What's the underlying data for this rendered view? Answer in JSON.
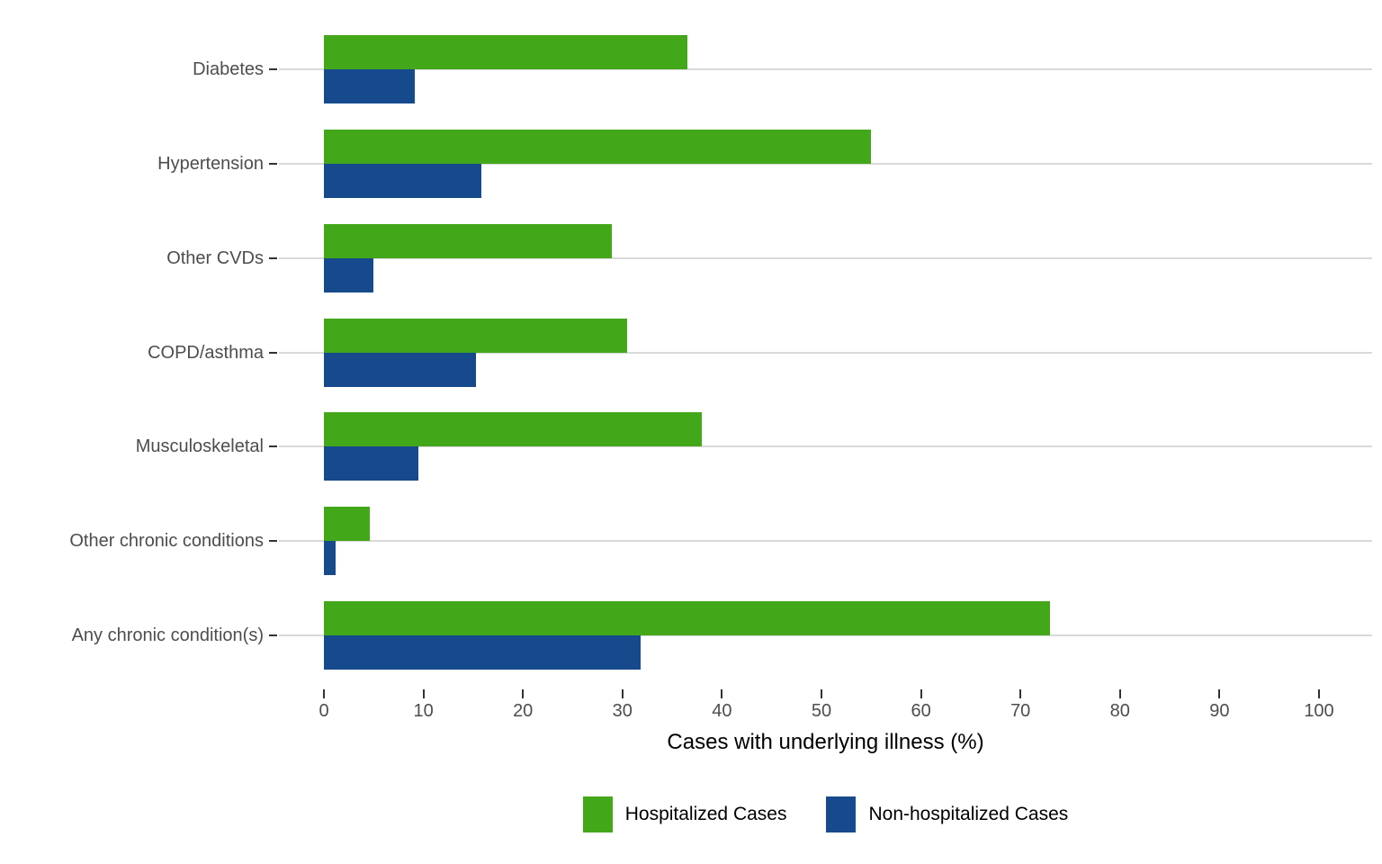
{
  "chart_data": {
    "type": "bar",
    "orientation": "horizontal",
    "title": "",
    "xlabel": "Cases with underlying illness (%)",
    "ylabel": "",
    "xlim": [
      0,
      100
    ],
    "xticks": [
      0,
      10,
      20,
      30,
      40,
      50,
      60,
      70,
      80,
      90,
      100
    ],
    "grid": "horizontal-category-lines-only",
    "legend_position": "bottom-center",
    "categories": [
      "Diabetes",
      "Hypertension",
      "Other CVDs",
      "COPD/asthma",
      "Musculoskeletal",
      "Other chronic conditions",
      "Any chronic condition(s)"
    ],
    "series": [
      {
        "name": "Hospitalized Cases",
        "color": "#43A71A",
        "values": [
          36.5,
          55.0,
          28.9,
          30.5,
          38.0,
          4.6,
          73.0
        ]
      },
      {
        "name": "Non-hospitalized Cases",
        "color": "#164A8C",
        "values": [
          9.1,
          15.8,
          5.0,
          15.3,
          9.5,
          1.2,
          31.8
        ]
      }
    ]
  },
  "styles": {
    "background": "#FFFFFF",
    "gridline_color": "#D9D9D9",
    "tick_color": "#333333",
    "axis_text_color": "#4D4D4D",
    "axis_title_color": "#000000"
  }
}
